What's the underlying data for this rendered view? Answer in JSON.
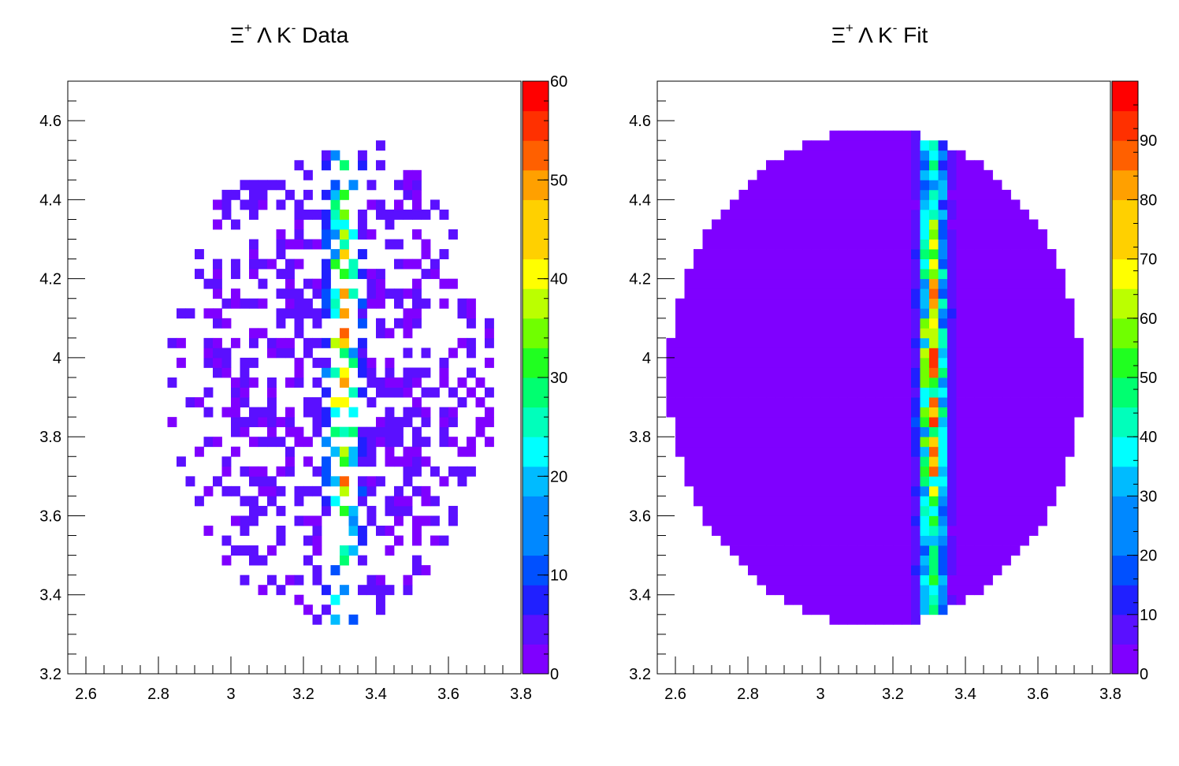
{
  "chart_data": [
    {
      "type": "heatmap",
      "title": "Ξ⁺ Λ K⁻ Data",
      "title_parts": {
        "main": "Ξ",
        "sup1": "+",
        "mid": " Λ K",
        "sup2": "-",
        "end": " Data"
      },
      "xlim": [
        2.55,
        3.8
      ],
      "ylim": [
        3.2,
        4.7
      ],
      "x_ticks": [
        2.6,
        2.8,
        3,
        3.2,
        3.4,
        3.6,
        3.8
      ],
      "x_tick_labels": [
        "2.6",
        "2.8",
        "3",
        "3.2",
        "3.4",
        "3.6",
        "3.8"
      ],
      "y_ticks": [
        3.2,
        3.4,
        3.6,
        3.8,
        4,
        4.2,
        4.4,
        4.6
      ],
      "y_tick_labels": [
        "3.2",
        "3.4",
        "3.6",
        "3.8",
        "4",
        "4.2",
        "4.4",
        "4.6"
      ],
      "colorbar": {
        "min": 0,
        "max": 60,
        "ticks": [
          0,
          10,
          20,
          30,
          40,
          50,
          60
        ],
        "tick_labels": [
          "0",
          "10",
          "20",
          "30",
          "40",
          "50",
          "60"
        ]
      },
      "bin_width": 0.025,
      "band": {
        "center_x": 3.31,
        "width": 0.05,
        "peak_value": 58
      },
      "occupancy": {
        "center_x": 3.28,
        "center_y": 3.95,
        "radius_x": 0.45,
        "radius_y": 0.62,
        "density": 0.55
      },
      "grid": false
    },
    {
      "type": "heatmap",
      "title": "Ξ⁺ Λ K⁻ Fit",
      "title_parts": {
        "main": "Ξ",
        "sup1": "+",
        "mid": " Λ K",
        "sup2": "-",
        "end": " Fit"
      },
      "xlim": [
        2.55,
        3.8
      ],
      "ylim": [
        3.2,
        4.7
      ],
      "x_ticks": [
        2.6,
        2.8,
        3,
        3.2,
        3.4,
        3.6,
        3.8
      ],
      "x_tick_labels": [
        "2.6",
        "2.8",
        "3",
        "3.2",
        "3.4",
        "3.6",
        "3.8"
      ],
      "y_ticks": [
        3.2,
        3.4,
        3.6,
        3.8,
        4,
        4.2,
        4.4,
        4.6
      ],
      "y_tick_labels": [
        "3.2",
        "3.4",
        "3.6",
        "3.8",
        "4",
        "4.2",
        "4.4",
        "4.6"
      ],
      "colorbar": {
        "min": 0,
        "max": 100,
        "ticks": [
          0,
          10,
          20,
          30,
          40,
          50,
          60,
          70,
          80,
          90
        ],
        "tick_labels": [
          "0",
          "10",
          "20",
          "30",
          "40",
          "50",
          "60",
          "70",
          "80",
          "90"
        ]
      },
      "bin_width": 0.025,
      "band": {
        "center_x": 3.31,
        "width": 0.045,
        "peak_value": 98
      },
      "occupancy": {
        "center_x": 3.15,
        "center_y": 3.95,
        "radius_x": 0.57,
        "radius_y": 0.63,
        "density": 1.0
      },
      "grid": false
    }
  ]
}
